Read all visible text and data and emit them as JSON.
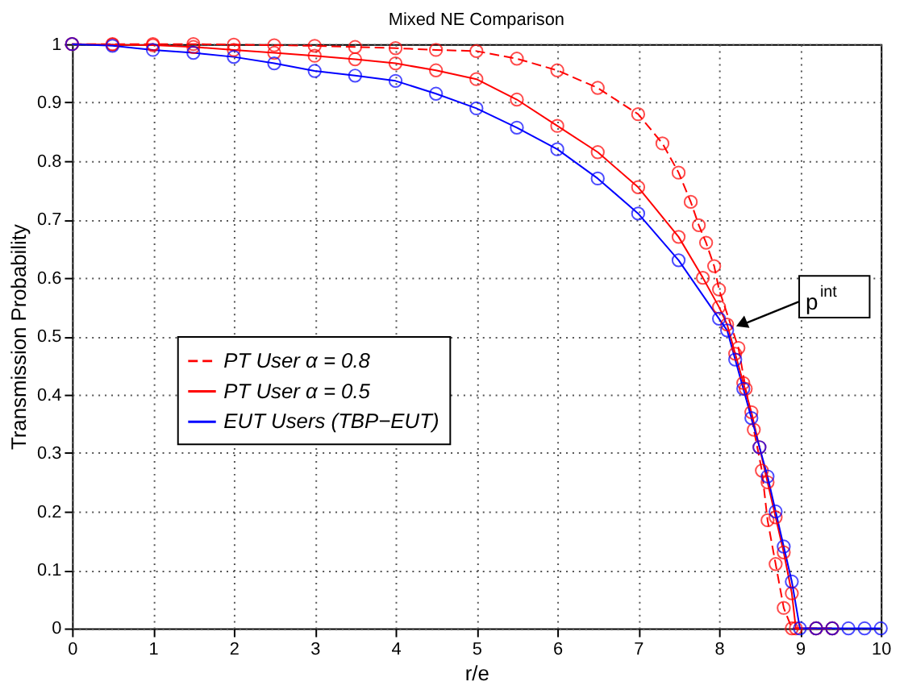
{
  "chart_data": {
    "type": "line",
    "title": "Mixed NE Comparison",
    "xlabel": "r/e",
    "ylabel": "Transmission Probability",
    "xlim": [
      0,
      10
    ],
    "xticks": [
      0,
      1,
      2,
      3,
      4,
      5,
      6,
      7,
      8,
      9,
      10
    ],
    "ylim": [
      0,
      1
    ],
    "yticks": [
      0,
      0.1,
      0.2,
      0.3,
      0.4,
      0.5,
      0.6,
      0.7,
      0.8,
      0.9,
      1
    ],
    "grid": true,
    "legend": "left",
    "marker": "circle",
    "series": [
      {
        "name": "PT User  α = 0.8",
        "color": "#ff0000",
        "line_style": "dashed",
        "x": [
          0,
          0.5,
          1,
          1.5,
          2,
          2.5,
          3,
          3.5,
          4,
          4.5,
          5,
          5.5,
          6,
          6.5,
          7,
          7.3,
          7.5,
          7.65,
          7.75,
          7.84,
          7.94,
          8,
          8.24,
          8.33,
          8.43,
          8.53,
          8.6,
          8.7,
          8.8,
          8.9,
          9.2,
          9.4
        ],
        "values": [
          1,
          1,
          1,
          1,
          0.999,
          0.998,
          0.997,
          0.995,
          0.993,
          0.99,
          0.988,
          0.975,
          0.955,
          0.925,
          0.88,
          0.83,
          0.78,
          0.73,
          0.69,
          0.66,
          0.62,
          0.58,
          0.48,
          0.41,
          0.34,
          0.27,
          0.185,
          0.11,
          0.035,
          0,
          0,
          0
        ]
      },
      {
        "name": "PT User  α = 0.5",
        "color": "#ff0000",
        "line_style": "solid",
        "x": [
          0,
          0.5,
          1,
          1.5,
          2,
          2.5,
          3,
          3.5,
          4,
          4.5,
          5,
          5.5,
          6,
          6.5,
          7,
          7.5,
          7.8,
          8,
          8.1,
          8.2,
          8.3,
          8.4,
          8.5,
          8.6,
          8.7,
          8.8,
          8.9,
          8.95,
          9.2,
          9.4
        ],
        "values": [
          1,
          0.999,
          0.998,
          0.995,
          0.99,
          0.985,
          0.98,
          0.974,
          0.967,
          0.955,
          0.94,
          0.905,
          0.86,
          0.815,
          0.755,
          0.67,
          0.6,
          0.55,
          0.52,
          0.47,
          0.42,
          0.37,
          0.31,
          0.25,
          0.19,
          0.13,
          0.06,
          0,
          0,
          0
        ]
      },
      {
        "name": "EUT Users (TBP−EUT)",
        "color": "#0000ff",
        "line_style": "solid",
        "x": [
          0,
          0.5,
          1,
          1.5,
          2,
          2.5,
          3,
          3.5,
          4,
          4.5,
          5,
          5.5,
          6,
          6.5,
          7,
          7.5,
          8,
          8.1,
          8.2,
          8.3,
          8.4,
          8.5,
          8.6,
          8.7,
          8.8,
          8.9,
          9,
          9.2,
          9.4,
          9.6,
          9.8,
          10
        ],
        "values": [
          1,
          0.997,
          0.99,
          0.985,
          0.978,
          0.967,
          0.954,
          0.946,
          0.937,
          0.915,
          0.89,
          0.857,
          0.82,
          0.77,
          0.71,
          0.63,
          0.53,
          0.51,
          0.46,
          0.41,
          0.36,
          0.31,
          0.26,
          0.2,
          0.14,
          0.08,
          0,
          0,
          0,
          0,
          0,
          0
        ]
      }
    ],
    "annotations": [
      {
        "text": "p$^{int}$",
        "x": 8.1,
        "y": 0.51
      }
    ]
  }
}
